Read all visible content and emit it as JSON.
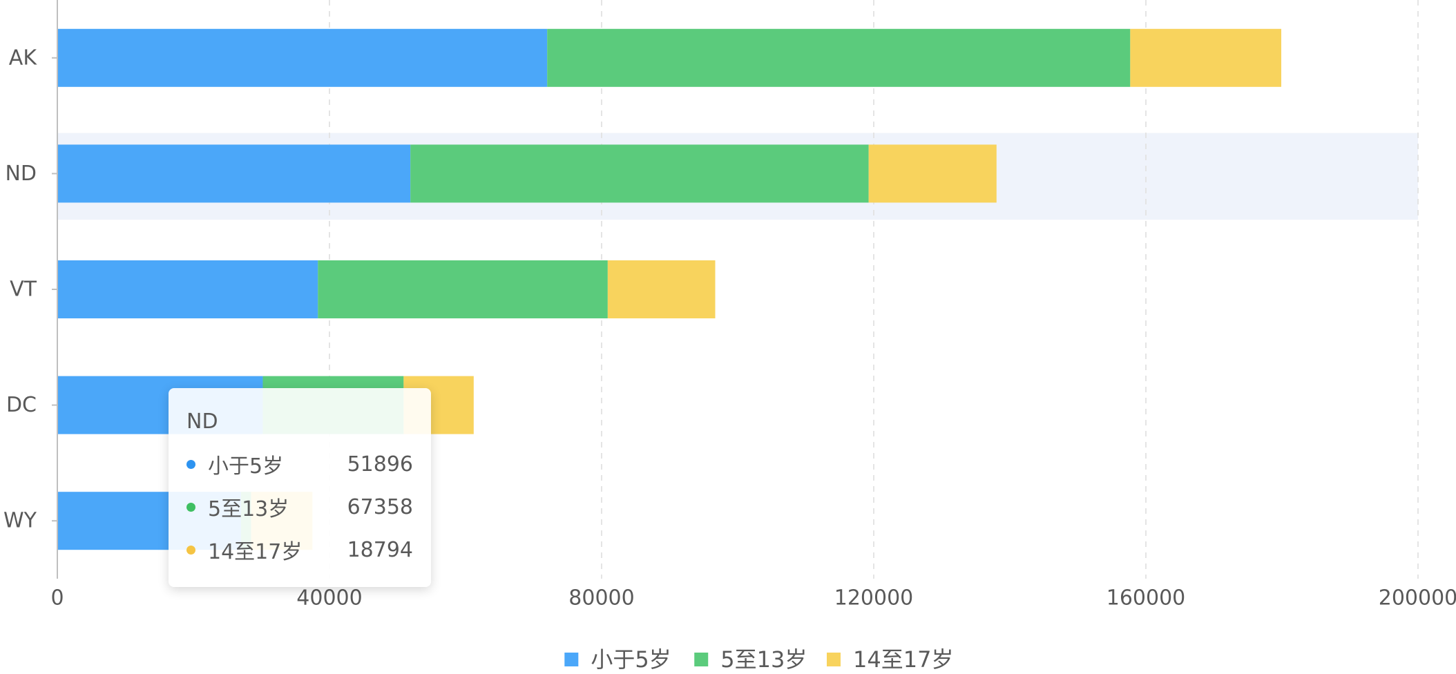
{
  "chart_data": {
    "type": "bar",
    "orientation": "horizontal",
    "stacked": true,
    "categories": [
      "AK",
      "ND",
      "VT",
      "DC",
      "WY"
    ],
    "series": [
      {
        "name": "小于5岁",
        "values": [
          72000,
          51896,
          38300,
          30200,
          27000
        ]
      },
      {
        "name": "5至13岁",
        "values": [
          85700,
          67358,
          42600,
          20700,
          1500
        ]
      },
      {
        "name": "14至17岁",
        "values": [
          22200,
          18794,
          15800,
          10300,
          9000
        ]
      }
    ],
    "xlim": [
      0,
      200000
    ],
    "x_ticks": [
      "0",
      "40000",
      "80000",
      "120000",
      "160000",
      "200000"
    ],
    "title": "",
    "xlabel": "",
    "ylabel": "",
    "grid": "vertical dashed",
    "legend_position": "bottom-center",
    "highlighted_category": "ND",
    "colors": [
      "#4ba7f9",
      "#5bcb7c",
      "#f8d35d"
    ],
    "highlight_band_color": "#eff3fb",
    "grid_color": "#e4e4e4",
    "axis_color": "#bfbfbf"
  },
  "tooltip": {
    "title": "ND",
    "items": [
      {
        "name": "小于5岁",
        "value": "51896",
        "color": "#2d93f0"
      },
      {
        "name": "5至13岁",
        "value": "67358",
        "color": "#3fbf62"
      },
      {
        "name": "14至17岁",
        "value": "18794",
        "color": "#f5c443"
      }
    ]
  }
}
